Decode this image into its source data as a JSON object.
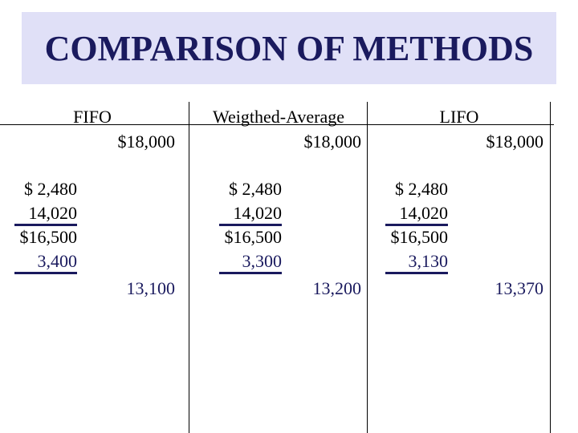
{
  "title": "COMPARISON OF METHODS",
  "accounts": [
    {
      "header": "FIFO",
      "credit": "$18,000",
      "debits": [
        "$ 2,480",
        "14,020",
        "$16,500",
        "3,400"
      ],
      "balance": "13,100"
    },
    {
      "header": "Weigthed-Average",
      "credit": "$18,000",
      "debits": [
        "$ 2,480",
        "14,020",
        "$16,500",
        "3,300"
      ],
      "balance": "13,200"
    },
    {
      "header": "LIFO",
      "credit": "$18,000",
      "debits": [
        "$ 2,480",
        "14,020",
        "$16,500",
        "3,130"
      ],
      "balance": "13,370"
    }
  ]
}
